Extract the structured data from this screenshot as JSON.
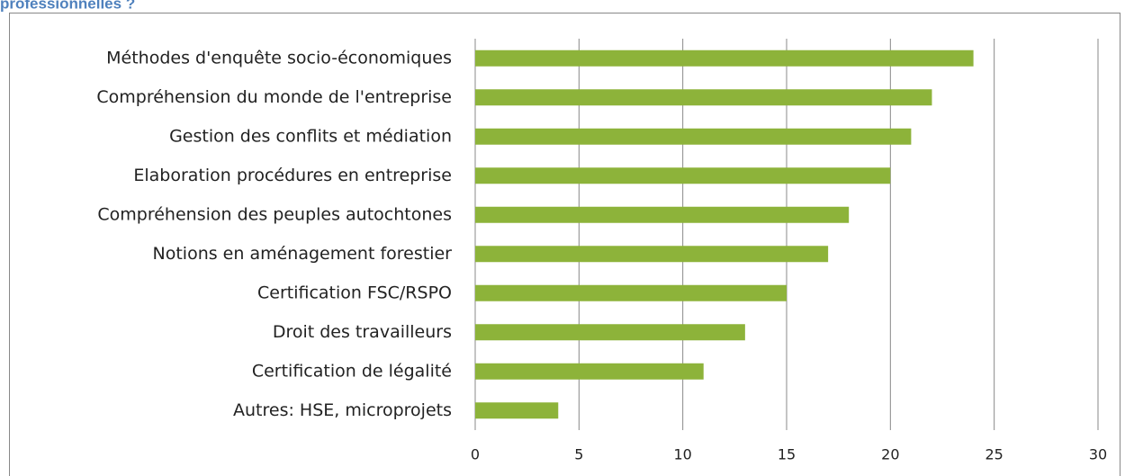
{
  "chart_data": {
    "type": "bar",
    "orientation": "horizontal",
    "title": "professionnelles ?",
    "categories": [
      "Méthodes d'enquête socio-économiques",
      "Compréhension du monde de l'entreprise",
      "Gestion des conflits et médiation",
      "Elaboration procédures en entreprise",
      "Compréhension des peuples autochtones",
      "Notions en aménagement forestier",
      "Certification FSC/RSPO",
      "Droit des travailleurs",
      "Certification de légalité",
      "Autres: HSE, microprojets"
    ],
    "values": [
      24,
      22,
      21,
      20,
      18,
      17,
      15,
      13,
      11,
      4
    ],
    "color": "#8db33a",
    "xlim": [
      0,
      30
    ],
    "xticks": [
      0,
      5,
      10,
      15,
      20,
      25,
      30
    ],
    "grid": true
  }
}
